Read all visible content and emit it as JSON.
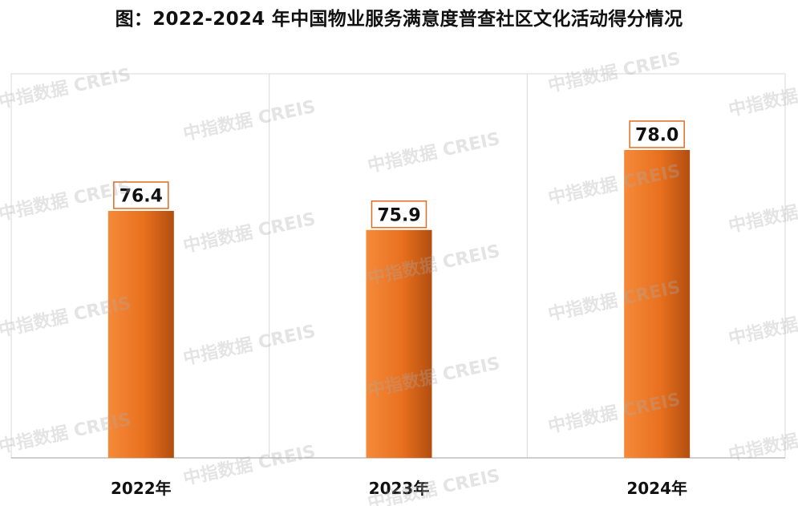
{
  "title": "图：2022-2024 年中国物业服务满意度普查社区文化活动得分情况",
  "watermark": "中指数据 CREIS",
  "colors": {
    "bar_light": "#F58A3A",
    "bar_mid": "#E8701E",
    "bar_dark": "#B24E10",
    "label_border": "#E26B1F",
    "grid": "#D9D9D9",
    "axis": "#BFBFBF"
  },
  "chart_data": {
    "type": "bar",
    "categories": [
      "2022年",
      "2023年",
      "2024年"
    ],
    "values": [
      76.4,
      75.9,
      78.0
    ],
    "data_labels": [
      "76.4",
      "75.9",
      "78.0"
    ],
    "title": "图：2022-2024 年中国物业服务满意度普查社区文化活动得分情况",
    "xlabel": "",
    "ylabel": "",
    "grid": "vertical category separators",
    "legend": "none"
  }
}
